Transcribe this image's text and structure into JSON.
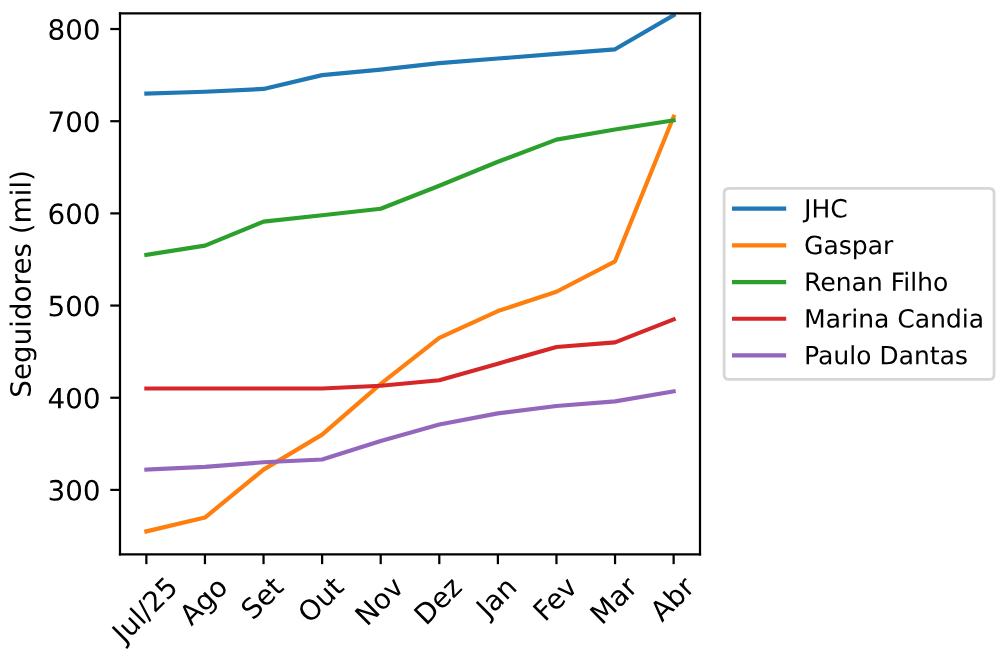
{
  "chart_data": {
    "type": "line",
    "ylabel": "Seguidores (mil)",
    "categories": [
      "Jul/25",
      "Ago",
      "Set",
      "Out",
      "Nov",
      "Dez",
      "Jan",
      "Fev",
      "Mar",
      "Abr"
    ],
    "series": [
      {
        "name": "JHC",
        "color": "#1f77b4",
        "values": [
          730,
          732,
          735,
          750,
          756,
          763,
          768,
          773,
          778,
          815
        ]
      },
      {
        "name": "Gaspar",
        "color": "#ff7f0e",
        "values": [
          255,
          270,
          322,
          360,
          415,
          465,
          494,
          515,
          548,
          705
        ]
      },
      {
        "name": "Renan Filho",
        "color": "#2ca02c",
        "values": [
          555,
          565,
          591,
          598,
          605,
          630,
          656,
          680,
          691,
          701
        ]
      },
      {
        "name": "Marina Candia",
        "color": "#d62728",
        "values": [
          410,
          410,
          410,
          410,
          413,
          419,
          437,
          455,
          460,
          485
        ]
      },
      {
        "name": "Paulo Dantas",
        "color": "#9467bd",
        "values": [
          322,
          325,
          330,
          333,
          353,
          371,
          383,
          391,
          396,
          407
        ]
      }
    ],
    "ylim": [
      230,
      817
    ],
    "yticks": [
      300,
      400,
      500,
      600,
      700,
      800
    ],
    "grid": false,
    "legend": "right"
  }
}
